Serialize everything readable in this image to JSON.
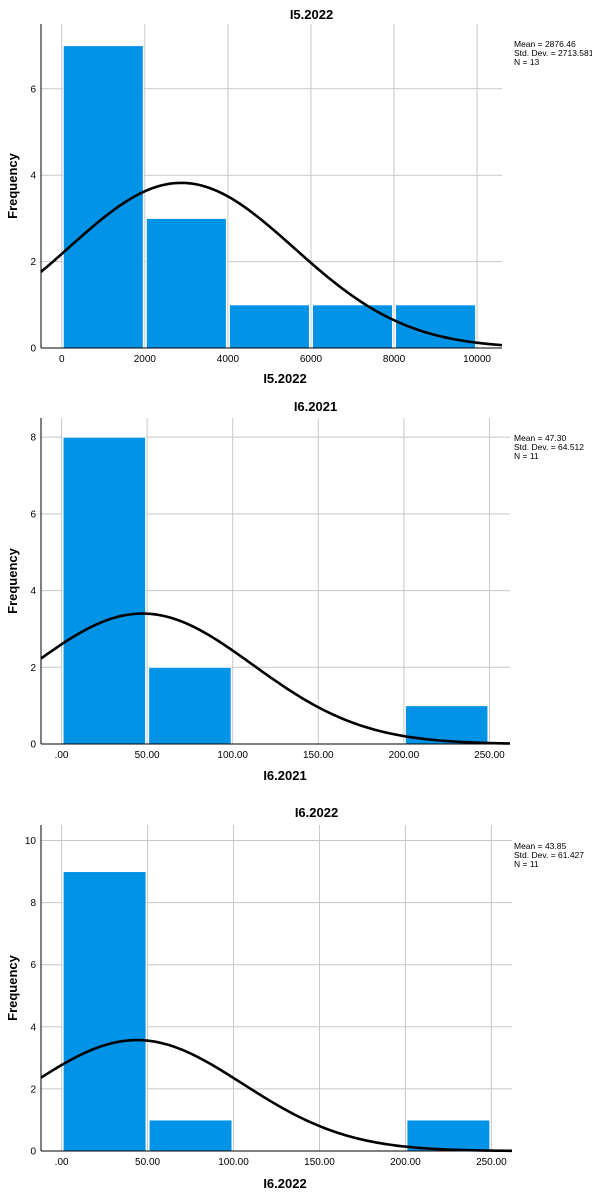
{
  "colors": {
    "bar": "#0093e6",
    "curve": "#000000",
    "grid": "#c8c8c8",
    "axis": "#000000"
  },
  "chart_data": [
    {
      "type": "bar",
      "title": "I5.2022",
      "xlabel": "I5.2022",
      "ylabel": "Frequency",
      "bins": [
        [
          0,
          2000
        ],
        [
          2000,
          4000
        ],
        [
          4000,
          6000
        ],
        [
          6000,
          8000
        ],
        [
          8000,
          10000
        ]
      ],
      "values": [
        7,
        3,
        1,
        1,
        1
      ],
      "xticks": [
        0,
        2000,
        4000,
        6000,
        8000,
        10000
      ],
      "xtick_labels": [
        "0",
        "2000",
        "4000",
        "6000",
        "8000",
        "10000"
      ],
      "yticks": [
        0,
        2,
        4,
        6
      ],
      "xlim": [
        -500,
        10600
      ],
      "ylim": [
        0,
        7.5
      ],
      "normal_curve": {
        "mean": 2876.46,
        "std": 2713.581,
        "n": 13,
        "binwidth": 2000
      },
      "stats": [
        "Mean = 2876.46",
        "Std. Dev. = 2713.581",
        "N = 13"
      ],
      "grid": true,
      "legend": "top-right"
    },
    {
      "type": "bar",
      "title": "I6.2021",
      "xlabel": "I6.2021",
      "ylabel": "Frequency",
      "bins": [
        [
          0,
          50
        ],
        [
          50,
          100
        ],
        [
          200,
          250
        ]
      ],
      "values": [
        8,
        2,
        1
      ],
      "xticks": [
        0,
        50,
        100,
        150,
        200,
        250
      ],
      "xtick_labels": [
        ".00",
        "50.00",
        "100.00",
        "150.00",
        "200.00",
        "250.00"
      ],
      "yticks": [
        0,
        2,
        4,
        6,
        8
      ],
      "xlim": [
        -12,
        262
      ],
      "ylim": [
        0,
        8.5
      ],
      "normal_curve": {
        "mean": 47.3,
        "std": 64.512,
        "n": 11,
        "binwidth": 50
      },
      "stats": [
        "Mean = 47.30",
        "Std. Dev. = 64.512",
        "N = 11"
      ],
      "grid": true,
      "legend": "top-right"
    },
    {
      "type": "bar",
      "title": "I6.2022",
      "xlabel": "I6.2022",
      "ylabel": "Frequency",
      "bins": [
        [
          0,
          50
        ],
        [
          50,
          100
        ],
        [
          200,
          250
        ]
      ],
      "values": [
        9,
        1,
        1
      ],
      "xticks": [
        0,
        50,
        100,
        150,
        200,
        250
      ],
      "xtick_labels": [
        ".00",
        "50.00",
        "100.00",
        "150.00",
        "200.00",
        "250.00"
      ],
      "yticks": [
        0,
        2,
        4,
        6,
        8,
        10
      ],
      "xlim": [
        -12,
        262
      ],
      "ylim": [
        0,
        10.5
      ],
      "normal_curve": {
        "mean": 43.85,
        "std": 61.427,
        "n": 11,
        "binwidth": 50
      },
      "stats": [
        "Mean = 43.85",
        "Std. Dev. = 61.427",
        "N = 11"
      ],
      "grid": true,
      "legend": "top-right"
    }
  ]
}
